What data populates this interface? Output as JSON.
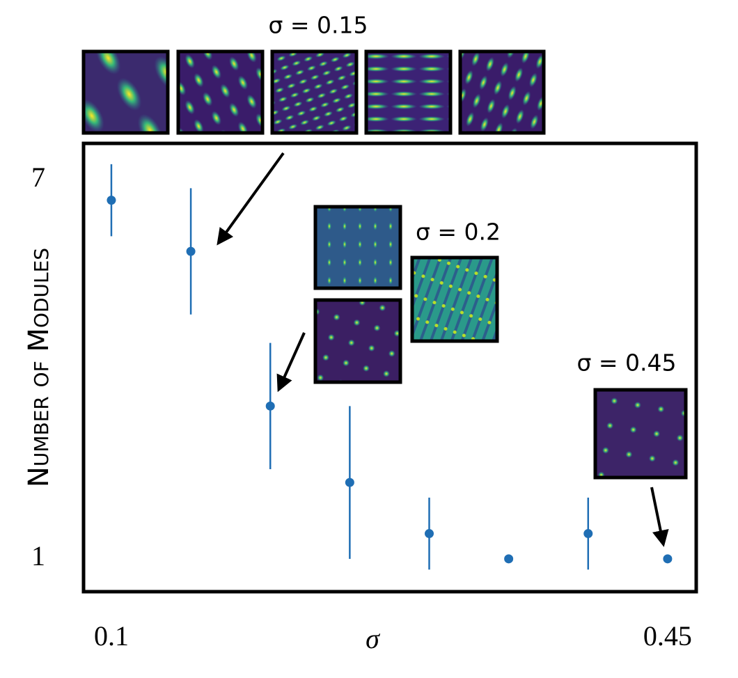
{
  "chart_data": {
    "type": "errorbar",
    "xlabel": "σ",
    "ylabel": "Number of Modules",
    "x": [
      0.1,
      0.15,
      0.2,
      0.25,
      0.3,
      0.35,
      0.4,
      0.45
    ],
    "values": [
      6.68,
      5.87,
      3.42,
      2.21,
      1.4,
      1.0,
      1.4,
      1.0
    ],
    "errors": [
      0.57,
      1.0,
      1.0,
      1.21,
      0.57,
      0,
      0.57,
      0
    ],
    "color": "#1f6eb4",
    "xlim": [
      0.0825,
      0.468
    ],
    "ylim": [
      0.48,
      7.58
    ],
    "xticks": [
      0.1,
      0.45
    ],
    "yticks": [
      7,
      1
    ],
    "annotations": [
      "σ = 0.15",
      "σ = 0.2",
      "σ = 0.45"
    ]
  }
}
